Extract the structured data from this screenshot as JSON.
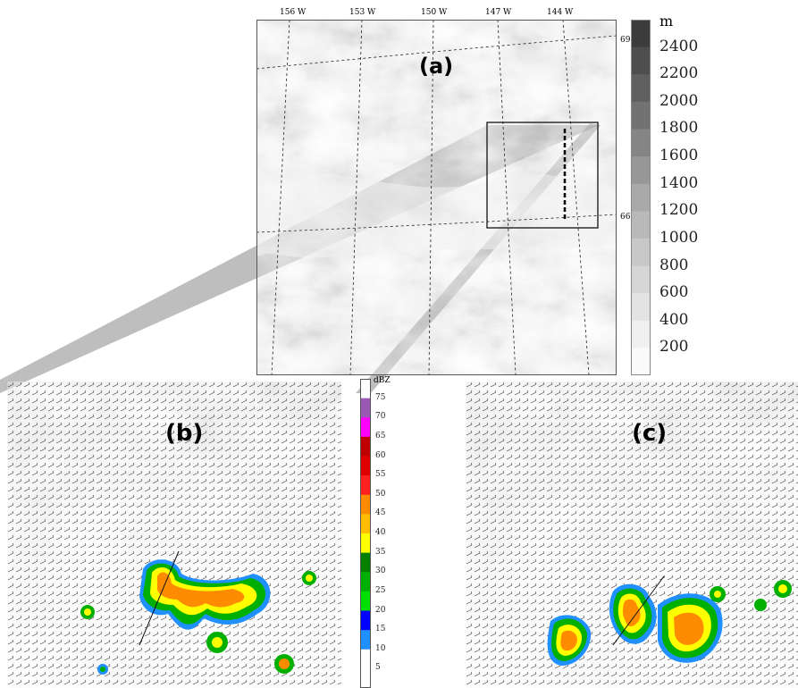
{
  "panel_a": {
    "label": "(a)",
    "lon_ticks": [
      "156 W",
      "153 W",
      "150 W",
      "147 W",
      "144 W"
    ],
    "lat_ticks": [
      "69 N",
      "66 N"
    ]
  },
  "elevation_legend": {
    "unit": "m",
    "levels": [
      "2400",
      "2200",
      "2000",
      "1800",
      "1600",
      "1400",
      "1200",
      "1000",
      "800",
      "600",
      "400",
      "200"
    ],
    "colors": [
      "#3c3c3c",
      "#4e4e4e",
      "#606060",
      "#727272",
      "#858585",
      "#979797",
      "#a9a9a9",
      "#b9b9b9",
      "#c8c8c8",
      "#d6d6d6",
      "#e3e3e3",
      "#f0f0f0",
      "#fafafa"
    ]
  },
  "reflectivity_legend": {
    "unit": "dBZ",
    "levels": [
      "75",
      "70",
      "65",
      "60",
      "55",
      "50",
      "45",
      "40",
      "35",
      "30",
      "25",
      "20",
      "15",
      "10",
      "5"
    ],
    "colors": [
      "#ffffff",
      "#9b59b6",
      "#ff00ff",
      "#c00000",
      "#e00000",
      "#ff2020",
      "#ff8c00",
      "#ffbf00",
      "#ffff00",
      "#008000",
      "#00b000",
      "#00e000",
      "#0000ff",
      "#1e90ff",
      "#ffffff",
      "#ffffff"
    ]
  },
  "panel_b": {
    "label": "(b)"
  },
  "panel_c": {
    "label": "(c)"
  }
}
